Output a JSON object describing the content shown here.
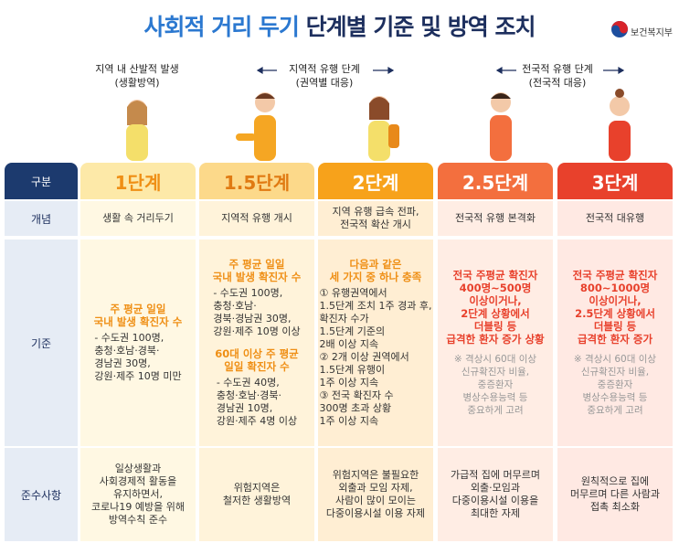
{
  "header": {
    "title_blue": "사회적 거리 두기",
    "title_navy": "단계별 기준 및 방역 조치",
    "ministry": "보건복지부"
  },
  "phases": [
    {
      "lines": [
        "지역 내 산발적 발생",
        "(생활방역)"
      ]
    },
    {
      "lines": [
        "지역적 유행 단계",
        "(권역별 대응)"
      ]
    },
    {
      "lines": [
        "전국적 유행 단계",
        "(전국적 대응)"
      ]
    }
  ],
  "table": {
    "row_headers": [
      "구분",
      "개념",
      "기준",
      "준수사항"
    ],
    "stages": [
      {
        "name": "1단계",
        "concept": [
          "생활 속 거리두기"
        ],
        "criteria": [
          {
            "heading": [
              "주 평균 일일",
              "국내 발생 확진자 수"
            ],
            "detail": [
              "- 수도권 100명,",
              "충청·호남·경북·",
              "경남권 30명,",
              "강원·제주 10명 미만"
            ]
          }
        ],
        "compliance": [
          "일상생활과",
          "사회경제적 활동을",
          "유지하면서,",
          "코로나19 예방을 위해",
          "방역수칙 준수"
        ]
      },
      {
        "name": "1.5단계",
        "concept": [
          "지역적 유행 개시"
        ],
        "criteria": [
          {
            "heading": [
              "주 평균 일일",
              "국내 발생 확진자 수"
            ],
            "detail": [
              "- 수도권 100명,",
              "충청·호남·",
              "경북·경남권 30명,",
              "강원·제주 10명 이상"
            ]
          },
          {
            "heading": [
              "60대 이상 주 평균",
              "일일 확진자 수"
            ],
            "detail": [
              "- 수도권 40명,",
              "충청·호남·경북·",
              "경남권 10명,",
              "강원·제주 4명 이상"
            ]
          }
        ],
        "compliance": [
          "위험지역은",
          "철저한 생활방역"
        ]
      },
      {
        "name": "2단계",
        "concept": [
          "지역 유행 급속 전파,",
          "전국적 확산 개시"
        ],
        "criteria": [
          {
            "heading": [
              "다음과 같은",
              "세 가지 중 하나 충족"
            ],
            "detail": [
              "① 유행권역에서",
              "1.5단계 조치 1주 경과 후,",
              "확진자 수가",
              "1.5단계 기준의",
              "2배 이상 지속",
              "② 2개 이상 권역에서",
              "1.5단계 유행이",
              "1주 이상 지속",
              "③ 전국 확진자 수",
              "300명 초과 상황",
              "1주 이상 지속"
            ]
          }
        ],
        "compliance": [
          "위험지역은 불필요한",
          "외출과 모임 자제,",
          "사람이 많이 모이는",
          "다중이용시설 이용 자제"
        ]
      },
      {
        "name": "2.5단계",
        "concept": [
          "전국적 유행 본격화"
        ],
        "criteria": [
          {
            "heading": [
              "전국 주평균 확진자",
              "400명~500명",
              "이상이거나,",
              "2단계 상황에서",
              "더블링 등",
              "급격한 환자 증가 상황"
            ],
            "note": [
              "※ 격상시 60대 이상",
              "신규확진자 비율,",
              "중증환자",
              "병상수용능력 등",
              "중요하게 고려"
            ]
          }
        ],
        "compliance": [
          "가급적 집에 머무르며",
          "외출·모임과",
          "다중이용시설 이용을",
          "최대한 자제"
        ]
      },
      {
        "name": "3단계",
        "concept": [
          "전국적 대유행"
        ],
        "criteria": [
          {
            "heading": [
              "전국 주평균 확진자",
              "800~1000명",
              "이상이거나,",
              "2.5단계 상황에서",
              "더블링 등",
              "급격한 환자 증가"
            ],
            "note": [
              "※ 격상시 60대 이상",
              "신규확진자 비율,",
              "중증환자",
              "병상수용능력 등",
              "중요하게 고려"
            ]
          }
        ],
        "compliance": [
          "원칙적으로 집에",
          "머무르며 다른 사람과",
          "접촉 최소화"
        ]
      }
    ]
  }
}
